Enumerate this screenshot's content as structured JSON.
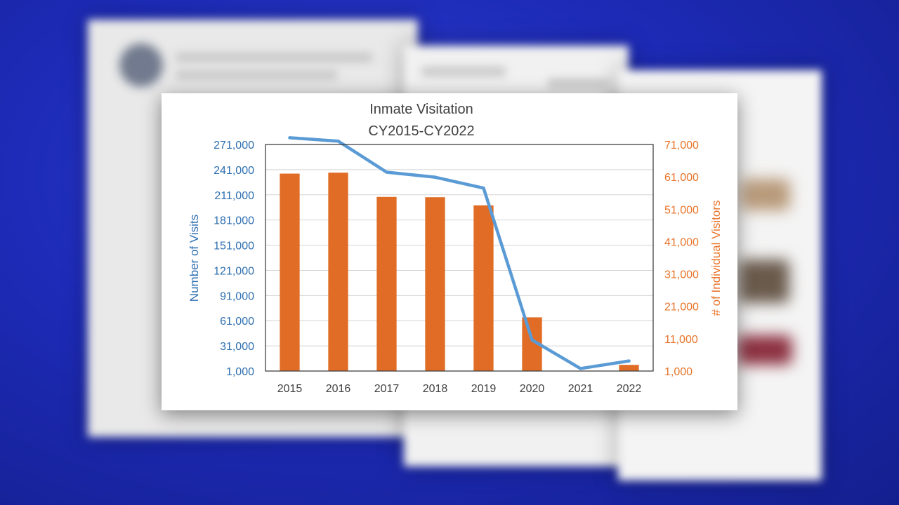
{
  "colors": {
    "visits_line": "#5b9bd5",
    "visitors_bars": "#e06c26",
    "left_axis_text": "#2e6fb0",
    "right_axis_text": "#e8742a",
    "background": "#1d2bb8"
  },
  "chart_data": {
    "type": "bar",
    "title_lines": [
      "Inmate Visitation",
      "CY2015-CY2022"
    ],
    "categories": [
      "2015",
      "2016",
      "2017",
      "2018",
      "2019",
      "2020",
      "2021",
      "2022"
    ],
    "xlabel": "",
    "ylabel": "Number of Visits",
    "y2label": "# of Individual Visitors",
    "ylim": [
      1000,
      271000
    ],
    "y2lim": [
      1000,
      71000
    ],
    "yticks": [
      "271,000",
      "241,000",
      "211,000",
      "181,000",
      "151,000",
      "121,000",
      "91,000",
      "61,000",
      "31,000",
      "1,000"
    ],
    "y2ticks": [
      "71,000",
      "61,000",
      "51,000",
      "41,000",
      "31,000",
      "21,000",
      "11,000",
      "1,000"
    ],
    "grid": true,
    "legend": "none",
    "series": [
      {
        "type": "bar",
        "axis": "right",
        "values": [
          62000,
          62300,
          54800,
          54700,
          52200,
          17600,
          0,
          2900
        ]
      },
      {
        "type": "line",
        "axis": "left",
        "values": [
          279000,
          275000,
          238000,
          232000,
          219000,
          38000,
          4000,
          13000
        ]
      }
    ]
  }
}
